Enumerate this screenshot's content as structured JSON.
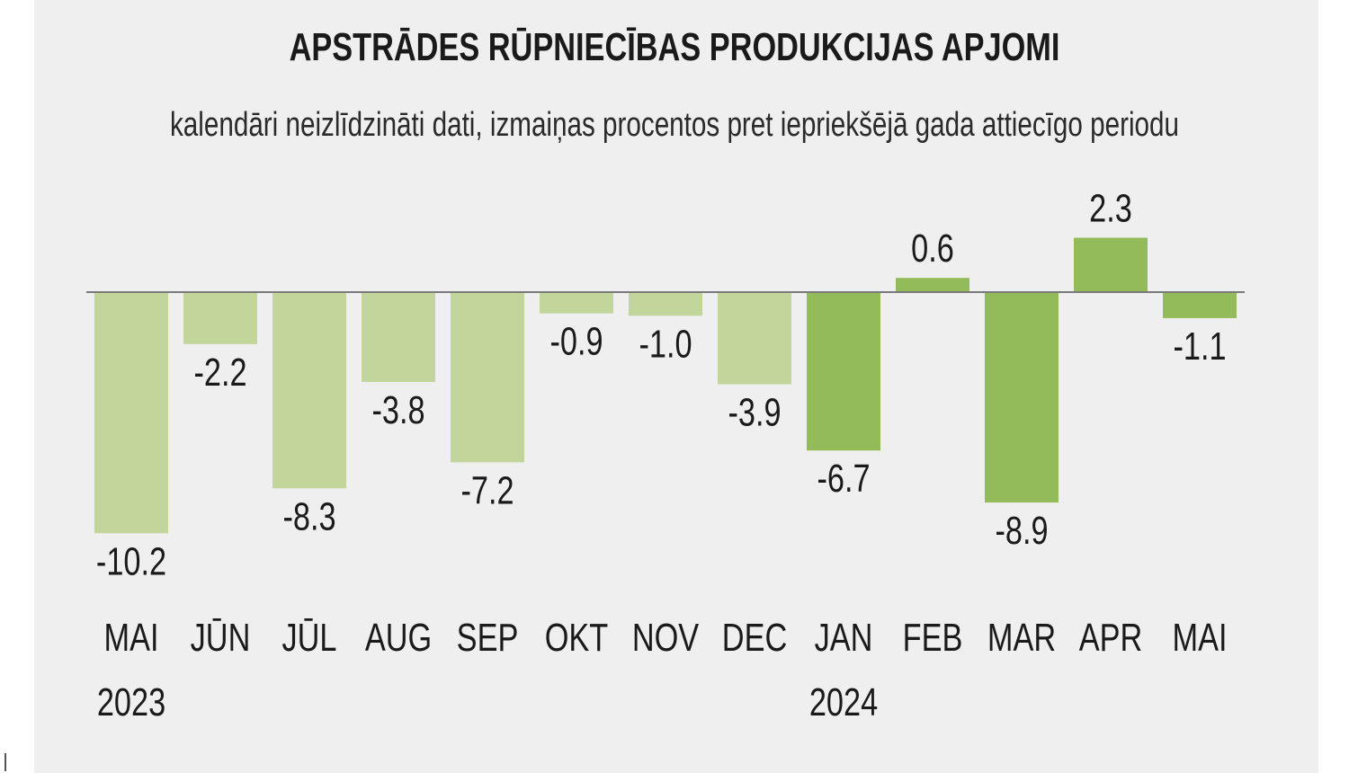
{
  "title": "APSTRĀDES RŪPNIECĪBAS PRODUKCIJAS APJOMI",
  "subtitle": "kalendāri neizlīdzināti dati, izmaiņas procentos pret iepriekšējā gada attiecīgo periodu",
  "colors": {
    "bar_2023": "#c2d69c",
    "bar_2024": "#93bb5a",
    "baseline": "#7a7a7a",
    "text": "#1a1a1a",
    "background": "#efefef"
  },
  "chart_data": {
    "type": "bar",
    "categories": [
      "MAI",
      "JŪN",
      "JŪL",
      "AUG",
      "SEP",
      "OKT",
      "NOV",
      "DEC",
      "JAN",
      "FEB",
      "MAR",
      "APR",
      "MAI"
    ],
    "values": [
      -10.2,
      -2.2,
      -8.3,
      -3.8,
      -7.2,
      -0.9,
      -1.0,
      -3.9,
      -6.7,
      0.6,
      -8.9,
      2.3,
      -1.1
    ],
    "value_labels": [
      "-10.2",
      "-2.2",
      "-8.3",
      "-3.8",
      "-7.2",
      "-0.9",
      "-1.0",
      "-3.9",
      "-6.7",
      "0.6",
      "-8.9",
      "2.3",
      "-1.1"
    ],
    "years": [
      {
        "label": "2023",
        "category_index": 0
      },
      {
        "label": "2024",
        "category_index": 8
      }
    ],
    "highlight_from_index": 8,
    "title": "APSTRĀDES RŪPNIECĪBAS PRODUKCIJAS APJOMI",
    "xlabel": "",
    "ylabel": "",
    "ylim": [
      -10.2,
      2.3
    ],
    "grid": false,
    "legend": "none"
  }
}
